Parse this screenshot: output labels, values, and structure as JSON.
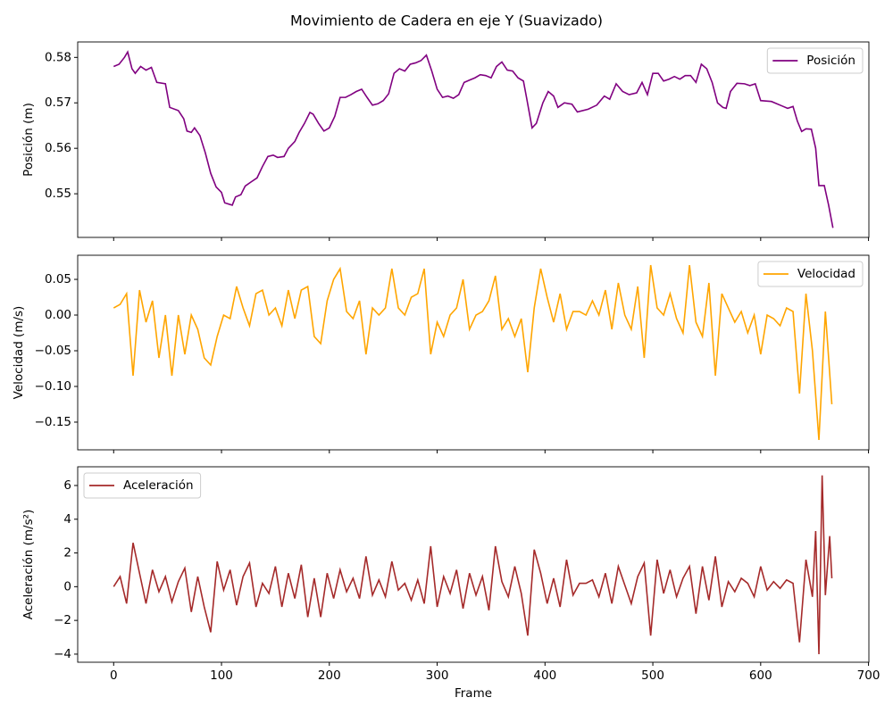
{
  "title": "Movimiento de Cadera en eje Y (Suavizado)",
  "chart_data": [
    {
      "type": "line",
      "ylabel": "Posición (m)",
      "legend": "upper right",
      "x": [
        0,
        5,
        10,
        13,
        17,
        20,
        25,
        30,
        35,
        40,
        48,
        52,
        60,
        65,
        68,
        72,
        75,
        80,
        85,
        90,
        95,
        100,
        103,
        110,
        113,
        118,
        122,
        128,
        133,
        138,
        143,
        148,
        152,
        158,
        162,
        168,
        172,
        177,
        182,
        185,
        190,
        195,
        200,
        205,
        210,
        215,
        220,
        225,
        230,
        235,
        240,
        245,
        250,
        255,
        260,
        265,
        270,
        275,
        280,
        285,
        290,
        295,
        300,
        305,
        310,
        315,
        320,
        325,
        330,
        335,
        340,
        345,
        350,
        355,
        360,
        365,
        370,
        375,
        380,
        383,
        388,
        392,
        398,
        403,
        408,
        412,
        418,
        425,
        430,
        440,
        448,
        455,
        460,
        466,
        472,
        478,
        485,
        490,
        495,
        500,
        505,
        510,
        515,
        520,
        525,
        530,
        535,
        540,
        545,
        550,
        555,
        560,
        565,
        568,
        572,
        578,
        585,
        590,
        595,
        600,
        610,
        620,
        625,
        630,
        634,
        638,
        642,
        647,
        651,
        654,
        659,
        663,
        667
      ],
      "series": [
        {
          "name": "Posición",
          "color": "#800080",
          "values": [
            0.578,
            0.5785,
            0.58,
            0.5812,
            0.5775,
            0.5765,
            0.578,
            0.5772,
            0.5778,
            0.5745,
            0.5742,
            0.569,
            0.5683,
            0.5665,
            0.5638,
            0.5635,
            0.5645,
            0.5628,
            0.559,
            0.5545,
            0.5515,
            0.5503,
            0.548,
            0.5475,
            0.5493,
            0.5498,
            0.5517,
            0.5527,
            0.5535,
            0.556,
            0.5582,
            0.5585,
            0.558,
            0.5582,
            0.56,
            0.5615,
            0.5635,
            0.5655,
            0.5679,
            0.5675,
            0.5655,
            0.5638,
            0.5645,
            0.567,
            0.5712,
            0.5712,
            0.5718,
            0.5725,
            0.573,
            0.5712,
            0.5695,
            0.5698,
            0.5705,
            0.572,
            0.5765,
            0.5775,
            0.577,
            0.5785,
            0.5788,
            0.5793,
            0.5805,
            0.577,
            0.573,
            0.5712,
            0.5715,
            0.571,
            0.5718,
            0.5745,
            0.575,
            0.5755,
            0.5762,
            0.576,
            0.5755,
            0.578,
            0.579,
            0.5772,
            0.577,
            0.5755,
            0.5748,
            0.571,
            0.5645,
            0.5655,
            0.57,
            0.5725,
            0.5715,
            0.569,
            0.57,
            0.5697,
            0.568,
            0.5686,
            0.5695,
            0.5715,
            0.5708,
            0.5742,
            0.5725,
            0.5718,
            0.5722,
            0.5745,
            0.5718,
            0.5765,
            0.5765,
            0.5748,
            0.5752,
            0.5758,
            0.5752,
            0.576,
            0.576,
            0.5745,
            0.5785,
            0.5775,
            0.5745,
            0.57,
            0.569,
            0.5688,
            0.5725,
            0.5743,
            0.5742,
            0.5738,
            0.5742,
            0.5705,
            0.5703,
            0.5693,
            0.5688,
            0.5692,
            0.566,
            0.5637,
            0.5643,
            0.5642,
            0.56,
            0.5518,
            0.5518,
            0.5475,
            0.5425
          ]
        }
      ],
      "xlim": [
        -33.35,
        700.35
      ],
      "ylim": [
        0.5404,
        0.5834
      ],
      "yticks": [
        0.55,
        0.56,
        0.57,
        0.58
      ]
    },
    {
      "type": "line",
      "ylabel": "Velocidad (m/s)",
      "legend": "upper right",
      "x": [
        0,
        6,
        12,
        18,
        24,
        30,
        36,
        42,
        48,
        54,
        60,
        66,
        72,
        78,
        84,
        90,
        96,
        102,
        108,
        114,
        120,
        126,
        132,
        138,
        144,
        150,
        156,
        162,
        168,
        174,
        180,
        186,
        192,
        198,
        204,
        210,
        216,
        222,
        228,
        234,
        240,
        246,
        252,
        258,
        264,
        270,
        276,
        282,
        288,
        294,
        300,
        306,
        312,
        318,
        324,
        330,
        336,
        342,
        348,
        354,
        360,
        366,
        372,
        378,
        384,
        390,
        396,
        402,
        408,
        414,
        420,
        426,
        432,
        438,
        444,
        450,
        456,
        462,
        468,
        474,
        480,
        486,
        492,
        498,
        504,
        510,
        516,
        522,
        528,
        534,
        540,
        546,
        552,
        558,
        564,
        570,
        576,
        582,
        588,
        594,
        600,
        606,
        612,
        618,
        624,
        630,
        636,
        642,
        648,
        654,
        660,
        666
      ],
      "series": [
        {
          "name": "Velocidad",
          "color": "#ffa500",
          "values": [
            0.01,
            0.015,
            0.03,
            -0.085,
            0.035,
            -0.01,
            0.02,
            -0.06,
            0.0,
            -0.085,
            0.0,
            -0.055,
            0.0,
            -0.02,
            -0.06,
            -0.07,
            -0.03,
            0.0,
            -0.005,
            0.04,
            0.01,
            -0.015,
            0.03,
            0.035,
            0.0,
            0.01,
            -0.015,
            0.035,
            -0.005,
            0.035,
            0.04,
            -0.03,
            -0.04,
            0.02,
            0.05,
            0.065,
            0.005,
            -0.005,
            0.02,
            -0.055,
            0.01,
            0.0,
            0.01,
            0.065,
            0.01,
            0.0,
            0.025,
            0.03,
            0.065,
            -0.055,
            -0.01,
            -0.03,
            0.0,
            0.01,
            0.05,
            -0.02,
            0.0,
            0.005,
            0.02,
            0.055,
            -0.02,
            -0.005,
            -0.03,
            -0.005,
            -0.08,
            0.01,
            0.065,
            0.025,
            -0.01,
            0.03,
            -0.02,
            0.005,
            0.005,
            0.0,
            0.02,
            0.0,
            0.035,
            -0.02,
            0.045,
            0.0,
            -0.02,
            0.04,
            -0.06,
            0.07,
            0.01,
            0.0,
            0.03,
            -0.005,
            -0.025,
            0.07,
            -0.01,
            -0.03,
            0.045,
            -0.085,
            0.03,
            0.01,
            -0.01,
            0.005,
            -0.025,
            0.0,
            -0.055,
            0.0,
            -0.005,
            -0.015,
            0.01,
            0.005,
            -0.11,
            0.03,
            -0.05,
            -0.175,
            0.005,
            -0.125
          ]
        }
      ],
      "xlim": [
        -33.35,
        700.35
      ],
      "ylim": [
        -0.1888,
        0.0838
      ],
      "yticks": [
        {
          "value": -0.15,
          "label": "−0.15"
        },
        {
          "value": -0.1,
          "label": "−0.10"
        },
        {
          "value": -0.05,
          "label": "−0.05"
        },
        {
          "value": 0,
          "label": "0.00"
        },
        0.05
      ]
    },
    {
      "type": "line",
      "ylabel": "Aceleración (m/s²)",
      "xlabel": "Frame",
      "legend": "upper left",
      "x": [
        0,
        6,
        12,
        18,
        24,
        30,
        36,
        42,
        48,
        54,
        60,
        66,
        72,
        78,
        84,
        90,
        96,
        102,
        108,
        114,
        120,
        126,
        132,
        138,
        144,
        150,
        156,
        162,
        168,
        174,
        180,
        186,
        192,
        198,
        204,
        210,
        216,
        222,
        228,
        234,
        240,
        246,
        252,
        258,
        264,
        270,
        276,
        282,
        288,
        294,
        300,
        306,
        312,
        318,
        324,
        330,
        336,
        342,
        348,
        354,
        360,
        366,
        372,
        378,
        384,
        390,
        396,
        402,
        408,
        414,
        420,
        426,
        432,
        438,
        444,
        450,
        456,
        462,
        468,
        474,
        480,
        486,
        492,
        498,
        504,
        510,
        516,
        522,
        528,
        534,
        540,
        546,
        552,
        558,
        564,
        570,
        576,
        582,
        588,
        594,
        600,
        606,
        612,
        618,
        624,
        630,
        636,
        642,
        648,
        651,
        654,
        657,
        660,
        664,
        666
      ],
      "series": [
        {
          "name": "Aceleración",
          "color": "#a52a2a",
          "values": [
            0,
            0.6,
            -1.0,
            2.6,
            0.8,
            -1.0,
            1.0,
            -0.3,
            0.6,
            -0.9,
            0.3,
            1.1,
            -1.5,
            0.6,
            -1.2,
            -2.7,
            1.5,
            -0.2,
            1.0,
            -1.1,
            0.6,
            1.4,
            -1.2,
            0.2,
            -0.4,
            1.2,
            -1.2,
            0.8,
            -0.7,
            1.3,
            -1.8,
            0.5,
            -1.8,
            0.8,
            -0.7,
            1.0,
            -0.3,
            0.5,
            -0.7,
            1.8,
            -0.5,
            0.4,
            -0.6,
            1.5,
            -0.2,
            0.2,
            -0.8,
            0.4,
            -1.0,
            2.4,
            -1.2,
            0.6,
            -0.4,
            1.0,
            -1.3,
            0.8,
            -0.5,
            0.6,
            -1.4,
            2.4,
            0.3,
            -0.6,
            1.2,
            -0.4,
            -2.9,
            2.2,
            0.8,
            -1.0,
            0.5,
            -1.2,
            1.6,
            -0.5,
            0.2,
            0.2,
            0.4,
            -0.6,
            0.8,
            -1.0,
            1.2,
            0.1,
            -1.0,
            0.6,
            1.4,
            -2.9,
            1.6,
            -0.4,
            1.0,
            -0.6,
            0.5,
            1.2,
            -1.6,
            1.2,
            -0.8,
            1.8,
            -1.2,
            0.3,
            -0.3,
            0.5,
            0.2,
            -0.6,
            1.2,
            -0.2,
            0.3,
            -0.1,
            0.4,
            0.2,
            -3.3,
            1.6,
            -0.6,
            3.3,
            -4.0,
            6.6,
            -0.5,
            3.0,
            0.5
          ]
        }
      ],
      "xlim": [
        -33.35,
        700.35
      ],
      "ylim": [
        -4.48,
        7.11
      ],
      "xticks": [
        0,
        100,
        200,
        300,
        400,
        500,
        600,
        700
      ],
      "yticks": [
        {
          "value": -4,
          "label": "−4"
        },
        {
          "value": -2,
          "label": "−2"
        },
        0,
        2,
        4,
        6
      ]
    }
  ]
}
